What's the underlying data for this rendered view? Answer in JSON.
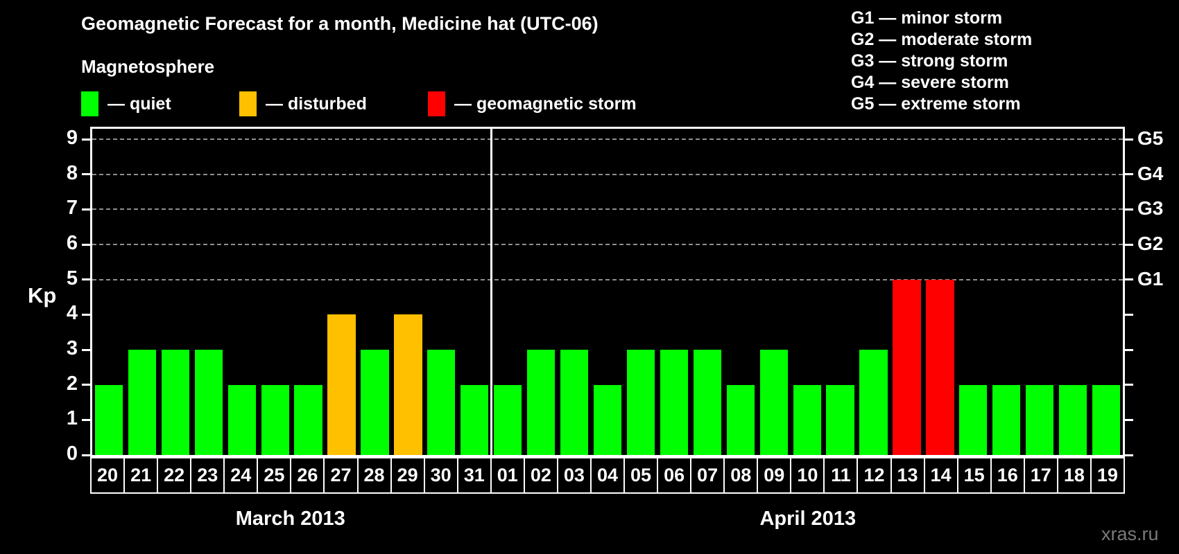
{
  "title": "Geomagnetic Forecast for a month, Medicine hat (UTC-06)",
  "magnetosphere_legend": {
    "heading": "Magnetosphere",
    "items": [
      {
        "key": "quiet",
        "label": "— quiet",
        "color": "#00ff00"
      },
      {
        "key": "disturbed",
        "label": "— disturbed",
        "color": "#ffc000"
      },
      {
        "key": "storm",
        "label": "— geomagnetic storm",
        "color": "#ff0000"
      }
    ]
  },
  "storm_scale_legend": [
    "G1 — minor storm",
    "G2 — moderate storm",
    "G3 — strong storm",
    "G4 — severe storm",
    "G5 — extreme storm"
  ],
  "watermark": "xras.ru",
  "chart_data": {
    "type": "bar",
    "title": "Geomagnetic Forecast for a month, Medicine hat (UTC-06)",
    "ylabel": "Kp",
    "ylim": [
      0,
      9.3
    ],
    "yticks": [
      0,
      1,
      2,
      3,
      4,
      5,
      6,
      7,
      8,
      9
    ],
    "gridlines_at": [
      5,
      6,
      7,
      8,
      9
    ],
    "grid": "dashed horizontal gridlines only at storm levels G1–G5",
    "legend_position": "top",
    "right_axis": [
      {
        "label": "G1",
        "value": 5
      },
      {
        "label": "G2",
        "value": 6
      },
      {
        "label": "G3",
        "value": 7
      },
      {
        "label": "G4",
        "value": 8
      },
      {
        "label": "G5",
        "value": 9
      }
    ],
    "status_colors": {
      "quiet": "#00ff00",
      "disturbed": "#ffc000",
      "storm": "#ff0000"
    },
    "months": [
      {
        "label": "March 2013",
        "days": [
          {
            "day": "20",
            "kp": 2,
            "status": "quiet"
          },
          {
            "day": "21",
            "kp": 3,
            "status": "quiet"
          },
          {
            "day": "22",
            "kp": 3,
            "status": "quiet"
          },
          {
            "day": "23",
            "kp": 3,
            "status": "quiet"
          },
          {
            "day": "24",
            "kp": 2,
            "status": "quiet"
          },
          {
            "day": "25",
            "kp": 2,
            "status": "quiet"
          },
          {
            "day": "26",
            "kp": 2,
            "status": "quiet"
          },
          {
            "day": "27",
            "kp": 4,
            "status": "disturbed"
          },
          {
            "day": "28",
            "kp": 3,
            "status": "quiet"
          },
          {
            "day": "29",
            "kp": 4,
            "status": "disturbed"
          },
          {
            "day": "30",
            "kp": 3,
            "status": "quiet"
          },
          {
            "day": "31",
            "kp": 2,
            "status": "quiet"
          }
        ]
      },
      {
        "label": "April 2013",
        "days": [
          {
            "day": "01",
            "kp": 2,
            "status": "quiet"
          },
          {
            "day": "02",
            "kp": 3,
            "status": "quiet"
          },
          {
            "day": "03",
            "kp": 3,
            "status": "quiet"
          },
          {
            "day": "04",
            "kp": 2,
            "status": "quiet"
          },
          {
            "day": "05",
            "kp": 3,
            "status": "quiet"
          },
          {
            "day": "06",
            "kp": 3,
            "status": "quiet"
          },
          {
            "day": "07",
            "kp": 3,
            "status": "quiet"
          },
          {
            "day": "08",
            "kp": 2,
            "status": "quiet"
          },
          {
            "day": "09",
            "kp": 3,
            "status": "quiet"
          },
          {
            "day": "10",
            "kp": 2,
            "status": "quiet"
          },
          {
            "day": "11",
            "kp": 2,
            "status": "quiet"
          },
          {
            "day": "12",
            "kp": 3,
            "status": "quiet"
          },
          {
            "day": "13",
            "kp": 5,
            "status": "storm"
          },
          {
            "day": "14",
            "kp": 5,
            "status": "storm"
          },
          {
            "day": "15",
            "kp": 2,
            "status": "quiet"
          },
          {
            "day": "16",
            "kp": 2,
            "status": "quiet"
          },
          {
            "day": "17",
            "kp": 2,
            "status": "quiet"
          },
          {
            "day": "18",
            "kp": 2,
            "status": "quiet"
          },
          {
            "day": "19",
            "kp": 2,
            "status": "quiet"
          }
        ]
      }
    ]
  }
}
